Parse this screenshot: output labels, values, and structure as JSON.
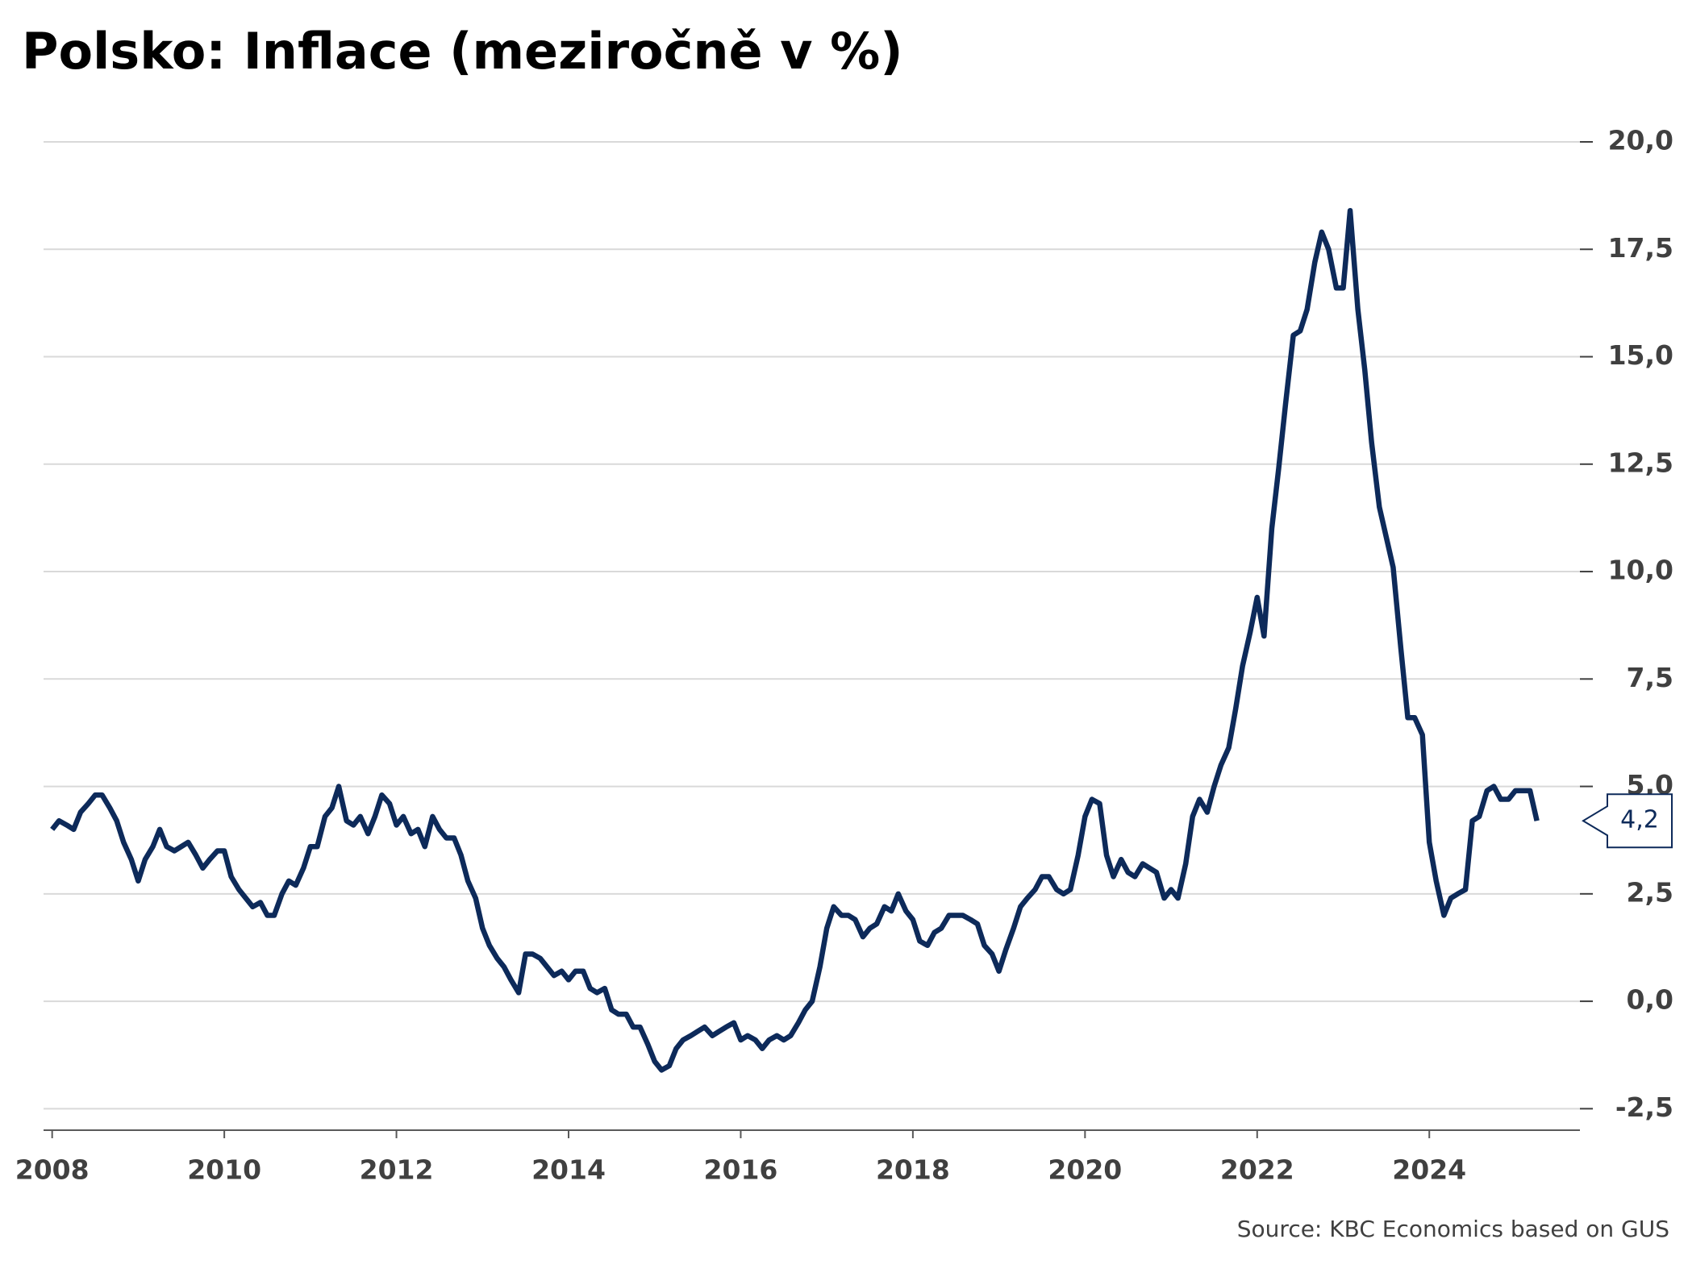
{
  "chart_data": {
    "type": "line",
    "title": "Polsko: Inflace (meziročně v %)",
    "source": "Source: KBC Economics based on GUS",
    "x": [
      2008,
      2008.08,
      2008.17,
      2008.25,
      2008.33,
      2008.42,
      2008.5,
      2008.58,
      2008.67,
      2008.75,
      2008.83,
      2008.92,
      2009,
      2009.08,
      2009.17,
      2009.25,
      2009.33,
      2009.42,
      2009.5,
      2009.58,
      2009.67,
      2009.75,
      2009.83,
      2009.92,
      2010,
      2010.08,
      2010.17,
      2010.25,
      2010.33,
      2010.42,
      2010.5,
      2010.58,
      2010.67,
      2010.75,
      2010.83,
      2010.92,
      2011,
      2011.08,
      2011.17,
      2011.25,
      2011.33,
      2011.42,
      2011.5,
      2011.58,
      2011.67,
      2011.75,
      2011.83,
      2011.92,
      2012,
      2012.08,
      2012.17,
      2012.25,
      2012.33,
      2012.42,
      2012.5,
      2012.58,
      2012.67,
      2012.75,
      2012.83,
      2012.92,
      2013,
      2013.08,
      2013.17,
      2013.25,
      2013.33,
      2013.42,
      2013.5,
      2013.58,
      2013.67,
      2013.75,
      2013.83,
      2013.92,
      2014,
      2014.08,
      2014.17,
      2014.25,
      2014.33,
      2014.42,
      2014.5,
      2014.58,
      2014.67,
      2014.75,
      2014.83,
      2014.92,
      2015,
      2015.08,
      2015.17,
      2015.25,
      2015.33,
      2015.42,
      2015.5,
      2015.58,
      2015.67,
      2015.75,
      2015.83,
      2015.92,
      2016,
      2016.08,
      2016.17,
      2016.25,
      2016.33,
      2016.42,
      2016.5,
      2016.58,
      2016.67,
      2016.75,
      2016.83,
      2016.92,
      2017,
      2017.08,
      2017.17,
      2017.25,
      2017.33,
      2017.42,
      2017.5,
      2017.58,
      2017.67,
      2017.75,
      2017.83,
      2017.92,
      2018,
      2018.08,
      2018.17,
      2018.25,
      2018.33,
      2018.42,
      2018.5,
      2018.58,
      2018.67,
      2018.75,
      2018.83,
      2018.92,
      2019,
      2019.08,
      2019.17,
      2019.25,
      2019.33,
      2019.42,
      2019.5,
      2019.58,
      2019.67,
      2019.75,
      2019.83,
      2019.92,
      2020,
      2020.08,
      2020.17,
      2020.25,
      2020.33,
      2020.42,
      2020.5,
      2020.58,
      2020.67,
      2020.75,
      2020.83,
      2020.92,
      2021,
      2021.08,
      2021.17,
      2021.25,
      2021.33,
      2021.42,
      2021.5,
      2021.58,
      2021.67,
      2021.75,
      2021.83,
      2021.92,
      2022,
      2022.08,
      2022.17,
      2022.25,
      2022.33,
      2022.42,
      2022.5,
      2022.58,
      2022.67,
      2022.75,
      2022.83,
      2022.92,
      2023,
      2023.08,
      2023.17,
      2023.25,
      2023.33,
      2023.42,
      2023.5,
      2023.58,
      2023.67,
      2023.75,
      2023.83,
      2023.92,
      2024,
      2024.08,
      2024.17,
      2024.25,
      2024.33,
      2024.42,
      2024.5,
      2024.58,
      2024.67,
      2024.75,
      2024.83,
      2024.92,
      2025,
      2025.08,
      2025.17,
      2025.25
    ],
    "series": [
      {
        "color": "#0d2a5a",
        "values": [
          4.0,
          4.2,
          4.1,
          4.0,
          4.4,
          4.6,
          4.8,
          4.8,
          4.5,
          4.2,
          3.7,
          3.3,
          2.8,
          3.3,
          3.6,
          4.0,
          3.6,
          3.5,
          3.6,
          3.7,
          3.4,
          3.1,
          3.3,
          3.5,
          3.5,
          2.9,
          2.6,
          2.4,
          2.2,
          2.3,
          2.0,
          2.0,
          2.5,
          2.8,
          2.7,
          3.1,
          3.6,
          3.6,
          4.3,
          4.5,
          5.0,
          4.2,
          4.1,
          4.3,
          3.9,
          4.3,
          4.8,
          4.6,
          4.1,
          4.3,
          3.9,
          4.0,
          3.6,
          4.3,
          4.0,
          3.8,
          3.8,
          3.4,
          2.8,
          2.4,
          1.7,
          1.3,
          1.0,
          0.8,
          0.5,
          0.2,
          1.1,
          1.1,
          1.0,
          0.8,
          0.6,
          0.7,
          0.5,
          0.7,
          0.7,
          0.3,
          0.2,
          0.3,
          -0.2,
          -0.3,
          -0.3,
          -0.6,
          -0.6,
          -1.0,
          -1.4,
          -1.6,
          -1.5,
          -1.1,
          -0.9,
          -0.8,
          -0.7,
          -0.6,
          -0.8,
          -0.7,
          -0.6,
          -0.5,
          -0.9,
          -0.8,
          -0.9,
          -1.1,
          -0.9,
          -0.8,
          -0.9,
          -0.8,
          -0.5,
          -0.2,
          0.0,
          0.8,
          1.7,
          2.2,
          2.0,
          2.0,
          1.9,
          1.5,
          1.7,
          1.8,
          2.2,
          2.1,
          2.5,
          2.1,
          1.9,
          1.4,
          1.3,
          1.6,
          1.7,
          2.0,
          2.0,
          2.0,
          1.9,
          1.8,
          1.3,
          1.1,
          0.7,
          1.2,
          1.7,
          2.2,
          2.4,
          2.6,
          2.9,
          2.9,
          2.6,
          2.5,
          2.6,
          3.4,
          4.3,
          4.7,
          4.6,
          3.4,
          2.9,
          3.3,
          3.0,
          2.9,
          3.2,
          3.1,
          3.0,
          2.4,
          2.6,
          2.4,
          3.2,
          4.3,
          4.7,
          4.4,
          5.0,
          5.5,
          5.9,
          6.8,
          7.8,
          8.6,
          9.4,
          8.5,
          11.0,
          12.4,
          13.9,
          15.5,
          15.6,
          16.1,
          17.2,
          17.9,
          17.5,
          16.6,
          16.6,
          18.4,
          16.1,
          14.7,
          13.0,
          11.5,
          10.8,
          10.1,
          8.2,
          6.6,
          6.6,
          6.2,
          3.7,
          2.8,
          2.0,
          2.4,
          2.5,
          2.6,
          4.2,
          4.3,
          4.9,
          5.0,
          4.7,
          4.7,
          4.9,
          4.9,
          4.9,
          4.2
        ],
        "value_labels": [
          null,
          null,
          null,
          null,
          null,
          null,
          null,
          null,
          null,
          null,
          null,
          null,
          null,
          null,
          null,
          null,
          null,
          null,
          null,
          null,
          null,
          null,
          null,
          null,
          null,
          null,
          null,
          null,
          null,
          null,
          null,
          null,
          null,
          null,
          null,
          null,
          null,
          null,
          null,
          null,
          null,
          null,
          null,
          null,
          null,
          null,
          null,
          null,
          null,
          null,
          null,
          null,
          null,
          null,
          null,
          null,
          null,
          null,
          null,
          null,
          null,
          null,
          null,
          null,
          null,
          null,
          null,
          null,
          null,
          null,
          null,
          null,
          null,
          null,
          null,
          null,
          null,
          null,
          null,
          null,
          null,
          null,
          null,
          null,
          null,
          null,
          null,
          null,
          null,
          null,
          null,
          null,
          null,
          null,
          null,
          null,
          null,
          null,
          null,
          null,
          null,
          null,
          null,
          null,
          null,
          null,
          null,
          null,
          null,
          null,
          null,
          null,
          null,
          null,
          null,
          null,
          null,
          null,
          null,
          null,
          null,
          null,
          null,
          null,
          null,
          null,
          null,
          null,
          null,
          null,
          null,
          null,
          null,
          null,
          null,
          null,
          null,
          null,
          null,
          null,
          null,
          null,
          null,
          null,
          null,
          null,
          null,
          null,
          null,
          null,
          null,
          null,
          null,
          null,
          null,
          null,
          null,
          null,
          null,
          null,
          null,
          null,
          null,
          null,
          null,
          null,
          null,
          null,
          null,
          null,
          null,
          null,
          null,
          null,
          null,
          null,
          null,
          null,
          null,
          null,
          null,
          null,
          null,
          null,
          null,
          null,
          null,
          null,
          null,
          null,
          null,
          null,
          null,
          null,
          null,
          null,
          null,
          null,
          null,
          null,
          null,
          null,
          null,
          null,
          null,
          null,
          null,
          "4,2"
        ]
      }
    ],
    "xlim": [
      2007.9,
      2025.75
    ],
    "xticks": [
      2008,
      2010,
      2012,
      2014,
      2016,
      2018,
      2020,
      2022,
      2024
    ],
    "ylim": [
      -3,
      20
    ],
    "yticks": [
      {
        "value": -2.5,
        "label": "-2,5"
      },
      {
        "value": 0,
        "label": "0,0"
      },
      {
        "value": 2.5,
        "label": "2,5"
      },
      {
        "value": 5,
        "label": "5,0"
      },
      {
        "value": 7.5,
        "label": "7,5"
      },
      {
        "value": 10,
        "label": "10,0"
      },
      {
        "value": 12.5,
        "label": "12,5"
      },
      {
        "value": 15,
        "label": "15,0"
      },
      {
        "value": 17.5,
        "label": "17,5"
      },
      {
        "value": 20,
        "label": "20,0"
      }
    ],
    "grid": true
  }
}
